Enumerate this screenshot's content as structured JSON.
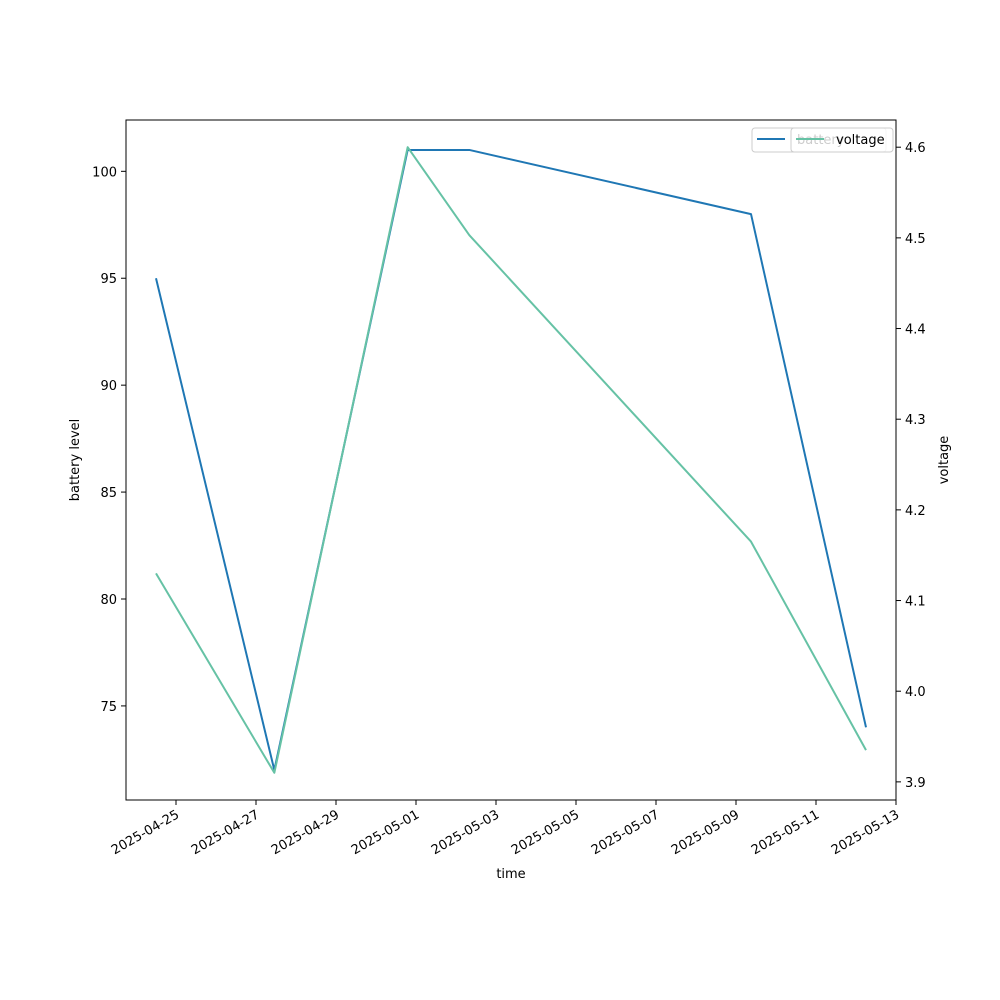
{
  "chart_data": {
    "type": "line",
    "xlabel": "time",
    "ylabel_left": "battery level",
    "ylabel_right": "voltage",
    "x_ticks": [
      "2025-04-25",
      "2025-04-27",
      "2025-04-29",
      "2025-05-01",
      "2025-05-03",
      "2025-05-05",
      "2025-05-07",
      "2025-05-09",
      "2025-05-11",
      "2025-05-13"
    ],
    "x_range": [
      "2025-04-23T18:00",
      "2025-05-13T00:00"
    ],
    "y_left_ticks": [
      75,
      80,
      85,
      90,
      95,
      100
    ],
    "y_left_range": [
      70.6,
      102.4
    ],
    "y_right_ticks": [
      3.9,
      4.0,
      4.1,
      4.2,
      4.3,
      4.4,
      4.5,
      4.6
    ],
    "y_right_range": [
      3.88,
      4.63
    ],
    "grid": false,
    "legend_position": "top-right",
    "series": [
      {
        "name": "battery",
        "axis": "left",
        "color": "#1f77b4",
        "points": [
          {
            "x": "2025-04-24T12:00",
            "y": 95
          },
          {
            "x": "2025-04-27T11:00",
            "y": 72
          },
          {
            "x": "2025-04-30T19:00",
            "y": 101
          },
          {
            "x": "2025-05-02T08:00",
            "y": 101
          },
          {
            "x": "2025-05-09T09:00",
            "y": 98
          },
          {
            "x": "2025-05-12T06:00",
            "y": 74
          }
        ]
      },
      {
        "name": "voltage",
        "axis": "right",
        "color": "#66c2a5",
        "points": [
          {
            "x": "2025-04-24T12:00",
            "y": 4.13
          },
          {
            "x": "2025-04-27T11:00",
            "y": 3.91
          },
          {
            "x": "2025-04-30T19:00",
            "y": 4.6
          },
          {
            "x": "2025-05-02T08:00",
            "y": 4.503
          },
          {
            "x": "2025-05-09T09:00",
            "y": 4.165
          },
          {
            "x": "2025-05-12T06:00",
            "y": 3.935
          }
        ]
      }
    ]
  }
}
